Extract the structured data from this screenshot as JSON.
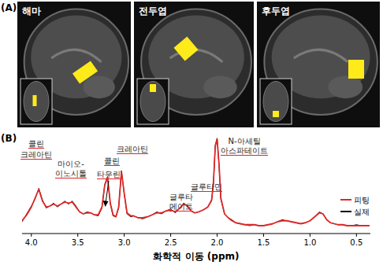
{
  "panel_a": {
    "label": "(A)",
    "images": [
      {
        "title": "해마"
      },
      {
        "title": "전두엽"
      },
      {
        "title": "후두엽"
      }
    ]
  },
  "chart_data": {
    "type": "line",
    "panel_label": "(B)",
    "x_label": "화학적 이동 (ppm)",
    "x": [
      4.1,
      4.05,
      4.0,
      3.96,
      3.92,
      3.88,
      3.84,
      3.8,
      3.76,
      3.72,
      3.68,
      3.64,
      3.6,
      3.56,
      3.52,
      3.48,
      3.44,
      3.4,
      3.36,
      3.32,
      3.28,
      3.24,
      3.21,
      3.18,
      3.15,
      3.12,
      3.09,
      3.06,
      3.03,
      3.0,
      2.97,
      2.93,
      2.9,
      2.85,
      2.8,
      2.75,
      2.7,
      2.65,
      2.6,
      2.55,
      2.5,
      2.45,
      2.4,
      2.36,
      2.32,
      2.28,
      2.24,
      2.2,
      2.15,
      2.1,
      2.06,
      2.04,
      2.02,
      2.0,
      1.98,
      1.96,
      1.92,
      1.88,
      1.84,
      1.8,
      1.75,
      1.7,
      1.65,
      1.6,
      1.55,
      1.5,
      1.45,
      1.4,
      1.35,
      1.3,
      1.25,
      1.2,
      1.15,
      1.1,
      1.05,
      1.0,
      0.95,
      0.9,
      0.86,
      0.82,
      0.78,
      0.74,
      0.7,
      0.65,
      0.6,
      0.55,
      0.5,
      0.45,
      0.4,
      0.36
    ],
    "xlim": [
      4.1,
      0.35
    ],
    "xticks": [
      {
        "value": 4,
        "label": "4.0"
      },
      3.5,
      {
        "value": 3,
        "label": "3.0"
      },
      2.5,
      {
        "value": 2,
        "label": "2.0"
      },
      1.5,
      {
        "value": 1,
        "label": "1.0"
      },
      0.5
    ],
    "ylim": [
      0,
      100
    ],
    "tick_labels": "x",
    "grid": false,
    "legend": "right",
    "series": [
      {
        "name": "피팅",
        "color": "#e02828",
        "values": [
          13,
          19,
          27,
          36,
          45,
          33,
          27,
          28,
          30,
          28,
          30,
          32,
          31,
          32,
          27,
          22,
          20,
          21,
          21,
          19,
          19,
          27,
          49,
          57,
          31,
          19,
          17,
          27,
          63,
          41,
          21,
          18,
          18,
          16,
          16,
          17,
          19,
          21,
          21,
          23,
          24,
          22,
          26,
          30,
          28,
          23,
          21,
          22,
          24,
          27,
          34,
          51,
          89,
          96,
          71,
          36,
          20,
          16,
          13,
          11,
          10,
          9,
          9,
          9,
          8,
          8,
          9,
          10,
          12,
          13,
          13,
          12,
          11,
          10,
          11,
          13,
          17,
          21,
          20,
          14,
          11,
          10,
          9,
          9,
          8,
          8,
          8,
          8,
          8,
          8
        ]
      },
      {
        "name": "실제",
        "color": "#000000",
        "values": [
          12,
          20,
          28,
          35,
          46,
          34,
          26,
          28,
          31,
          27,
          30,
          33,
          30,
          33,
          28,
          22,
          20,
          22,
          21,
          19,
          18,
          26,
          50,
          58,
          30,
          18,
          17,
          26,
          64,
          40,
          20,
          17,
          18,
          16,
          15,
          17,
          19,
          22,
          20,
          23,
          25,
          21,
          26,
          31,
          28,
          23,
          21,
          22,
          24,
          27,
          33,
          50,
          90,
          97,
          70,
          35,
          20,
          16,
          14,
          11,
          10,
          9,
          8,
          9,
          8,
          8,
          9,
          10,
          12,
          14,
          13,
          12,
          11,
          10,
          11,
          13,
          17,
          22,
          20,
          14,
          11,
          10,
          9,
          9,
          8,
          8,
          9,
          8,
          8,
          8
        ]
      }
    ],
    "annotations": [
      {
        "lines": [
          "콜린"
        ]
      },
      {
        "lines": [
          "크레아틴"
        ]
      },
      {
        "lines": [
          "마이오-",
          "이노시톨"
        ]
      },
      {
        "lines": [
          "타우린"
        ]
      },
      {
        "lines": [
          "콜린"
        ]
      },
      {
        "lines": [
          "크레아틴"
        ]
      },
      {
        "lines": [
          "N-아세틸",
          "아스파테이트"
        ]
      },
      {
        "lines": [
          "글루타민"
        ]
      },
      {
        "lines": [
          "글루타",
          "메이트"
        ]
      }
    ]
  }
}
